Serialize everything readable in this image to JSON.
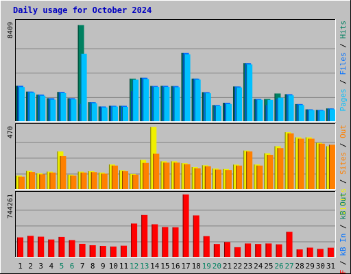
{
  "title": "Daily usage for October 2024",
  "chart_data": [
    {
      "type": "bar",
      "panel": "pages-files-hits",
      "ytick": "8409",
      "ylim": [
        0,
        8409
      ],
      "categories": [
        "1",
        "2",
        "3",
        "4",
        "5",
        "6",
        "7",
        "8",
        "9",
        "10",
        "11",
        "12",
        "13",
        "14",
        "15",
        "16",
        "17",
        "18",
        "19",
        "20",
        "21",
        "22",
        "23",
        "24",
        "25",
        "26",
        "27",
        "28",
        "29",
        "30",
        "31"
      ],
      "legend": [
        {
          "text": "Pages",
          "color": "#00c0ff"
        },
        {
          "text": " / ",
          "color": "#000000"
        },
        {
          "text": "Files",
          "color": "#0070ff"
        },
        {
          "text": " / ",
          "color": "#000000"
        },
        {
          "text": "Hits",
          "color": "#008060"
        }
      ],
      "series": [
        {
          "name": "Hits",
          "color": "#008060",
          "values": [
            3120,
            2610,
            2350,
            2040,
            2580,
            2040,
            8340,
            1700,
            1330,
            1390,
            1390,
            3730,
            3800,
            3100,
            3110,
            3090,
            5960,
            3730,
            2560,
            1450,
            1650,
            3050,
            5060,
            1980,
            1980,
            2450,
            2390,
            1540,
            1080,
            1030,
            1160
          ]
        },
        {
          "name": "Files",
          "color": "#0070ff",
          "values": [
            3120,
            2610,
            2350,
            2040,
            2580,
            2040,
            1550,
            1700,
            1330,
            1390,
            1390,
            2650,
            3800,
            3100,
            3110,
            3090,
            5960,
            3730,
            2560,
            1450,
            1650,
            3050,
            5060,
            1980,
            1450,
            2000,
            2390,
            1540,
            1080,
            1030,
            1160
          ]
        },
        {
          "name": "Pages",
          "color": "#00c0ff",
          "values": [
            3000,
            2520,
            2260,
            1920,
            2480,
            1950,
            5860,
            1610,
            1250,
            1320,
            1300,
            3640,
            3700,
            3010,
            3010,
            2990,
            5820,
            3640,
            2470,
            1370,
            1540,
            2970,
            4950,
            1900,
            1900,
            2090,
            2290,
            1460,
            1010,
            970,
            1090
          ]
        }
      ]
    },
    {
      "type": "bar",
      "panel": "sites-visits",
      "ytick": "470",
      "ylim": [
        0,
        470
      ],
      "categories": [
        "1",
        "2",
        "3",
        "4",
        "5",
        "6",
        "7",
        "8",
        "9",
        "10",
        "11",
        "12",
        "13",
        "14",
        "15",
        "16",
        "17",
        "18",
        "19",
        "20",
        "21",
        "22",
        "23",
        "24",
        "25",
        "26",
        "27",
        "28",
        "29",
        "30",
        "31"
      ],
      "legend": [
        {
          "text": "Visits",
          "color": "#f0f000"
        },
        {
          "text": " / ",
          "color": "#000000"
        },
        {
          "text": "Sites",
          "color": "#ff8000"
        },
        {
          "text": " / ",
          "color": "#000000"
        },
        {
          "text": "Out",
          "color": "#ff8000"
        }
      ],
      "series": [
        {
          "name": "Visits",
          "color": "#f0f000",
          "values": [
            105,
            140,
            122,
            135,
            285,
            112,
            135,
            138,
            128,
            188,
            145,
            118,
            222,
            468,
            212,
            212,
            198,
            168,
            182,
            158,
            154,
            187,
            292,
            188,
            271,
            324,
            428,
            390,
            390,
            349,
            324
          ]
        },
        {
          "name": "Sites",
          "color": "#ff8000",
          "values": [
            98,
            132,
            115,
            128,
            250,
            105,
            128,
            131,
            120,
            180,
            138,
            112,
            200,
            268,
            202,
            202,
            190,
            160,
            175,
            150,
            147,
            180,
            285,
            180,
            260,
            310,
            420,
            380,
            380,
            343,
            335
          ]
        }
      ]
    },
    {
      "type": "bar",
      "panel": "kbytes",
      "ytick": "744261",
      "ylim": [
        0,
        744261
      ],
      "categories": [
        "1",
        "2",
        "3",
        "4",
        "5",
        "6",
        "7",
        "8",
        "9",
        "10",
        "11",
        "12",
        "13",
        "14",
        "15",
        "16",
        "17",
        "18",
        "19",
        "20",
        "21",
        "22",
        "23",
        "24",
        "25",
        "26",
        "27",
        "28",
        "29",
        "30",
        "31"
      ],
      "legend": [
        {
          "text": "kB F",
          "color": "#ff0000"
        },
        {
          "text": " / ",
          "color": "#000000"
        },
        {
          "text": "kB In",
          "color": "#0070ff"
        },
        {
          "text": " / ",
          "color": "#000000"
        },
        {
          "text": "kB Out",
          "color": "#008060"
        }
      ],
      "series": [
        {
          "name": "kB F",
          "color": "#ff0000",
          "values": [
            238000,
            256000,
            246000,
            213000,
            243000,
            206000,
            162000,
            145000,
            137000,
            130000,
            140000,
            401000,
            502000,
            392000,
            360000,
            357000,
            744000,
            497000,
            252000,
            160000,
            183000,
            122000,
            166000,
            160000,
            166000,
            156000,
            303000,
            96000,
            117000,
            102000,
            116000
          ]
        }
      ]
    }
  ],
  "x_labels": [
    {
      "t": "1",
      "c": "#000000"
    },
    {
      "t": "2",
      "c": "#000000"
    },
    {
      "t": "3",
      "c": "#000000"
    },
    {
      "t": "4",
      "c": "#000000"
    },
    {
      "t": "5",
      "c": "#008060"
    },
    {
      "t": "6",
      "c": "#008060"
    },
    {
      "t": "7",
      "c": "#000000"
    },
    {
      "t": "8",
      "c": "#000000"
    },
    {
      "t": "9",
      "c": "#000000"
    },
    {
      "t": "10",
      "c": "#000000"
    },
    {
      "t": "11",
      "c": "#000000"
    },
    {
      "t": "12",
      "c": "#008060"
    },
    {
      "t": "13",
      "c": "#008060"
    },
    {
      "t": "14",
      "c": "#000000"
    },
    {
      "t": "15",
      "c": "#000000"
    },
    {
      "t": "16",
      "c": "#000000"
    },
    {
      "t": "17",
      "c": "#000000"
    },
    {
      "t": "18",
      "c": "#000000"
    },
    {
      "t": "19",
      "c": "#008060"
    },
    {
      "t": "20",
      "c": "#008060"
    },
    {
      "t": "21",
      "c": "#000000"
    },
    {
      "t": "22",
      "c": "#000000"
    },
    {
      "t": "23",
      "c": "#000000"
    },
    {
      "t": "24",
      "c": "#000000"
    },
    {
      "t": "25",
      "c": "#000000"
    },
    {
      "t": "26",
      "c": "#008060"
    },
    {
      "t": "27",
      "c": "#008060"
    },
    {
      "t": "28",
      "c": "#000000"
    },
    {
      "t": "29",
      "c": "#000000"
    },
    {
      "t": "30",
      "c": "#000000"
    },
    {
      "t": "31",
      "c": "#000000"
    }
  ]
}
